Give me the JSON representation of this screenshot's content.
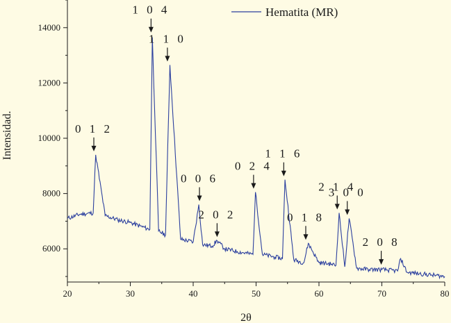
{
  "chart_data": {
    "type": "line",
    "title": "",
    "xlabel": "2θ",
    "ylabel": "Intensidad.",
    "xlim": [
      20,
      80
    ],
    "ylim": [
      4800,
      15000
    ],
    "x_ticks": [
      20,
      30,
      40,
      50,
      60,
      70,
      80
    ],
    "y_ticks": [
      6000,
      8000,
      10000,
      12000,
      14000
    ],
    "grid": false,
    "legend": {
      "position": "top-right",
      "entries": [
        "Hematita (MR)"
      ]
    },
    "colors": {
      "series": "#2b3f9e",
      "axis": "#1a1a1a",
      "background": "#fefbe4"
    },
    "series": [
      {
        "name": "Hematita (MR)",
        "x": [
          20,
          22,
          24.1,
          24.5,
          26,
          28,
          30,
          33.1,
          33.5,
          34.5,
          35.6,
          36.3,
          38,
          40,
          40.9,
          41.5,
          43,
          43.8,
          45,
          47,
          49.5,
          49.9,
          51,
          53,
          54.2,
          54.6,
          56,
          57.6,
          58.3,
          60,
          62,
          62.7,
          63.2,
          64.1,
          64.8,
          66,
          68,
          70,
          72.5,
          73,
          74,
          76,
          78,
          80
        ],
        "y": [
          7100,
          7250,
          7300,
          9400,
          7200,
          7050,
          6950,
          6700,
          13650,
          6650,
          6500,
          12650,
          6350,
          6250,
          7600,
          6150,
          6100,
          6300,
          6000,
          5900,
          5800,
          8050,
          5800,
          5700,
          5650,
          8500,
          5600,
          5500,
          6200,
          5500,
          5450,
          5400,
          7300,
          5350,
          7100,
          5300,
          5250,
          5250,
          5200,
          5650,
          5150,
          5100,
          5050,
          5000
        ]
      }
    ],
    "annotations": [
      {
        "label": "0 1 2",
        "x": 24.2,
        "y": 9400
      },
      {
        "label": "1 0 4",
        "x": 33.3,
        "y": 13700
      },
      {
        "label": "1 1 0",
        "x": 35.9,
        "y": 12650
      },
      {
        "label": "0 0 6",
        "x": 41.0,
        "y": 7600
      },
      {
        "label": "2 0 2",
        "x": 43.8,
        "y": 6300
      },
      {
        "label": "0 2 4",
        "x": 49.6,
        "y": 8050
      },
      {
        "label": "1 1 6",
        "x": 54.4,
        "y": 8500
      },
      {
        "label": "0 1 8",
        "x": 57.9,
        "y": 6200
      },
      {
        "label": "2 1 4",
        "x": 62.9,
        "y": 7300
      },
      {
        "label": "3 0 0",
        "x": 64.5,
        "y": 7100
      },
      {
        "label": "2 0 8",
        "x": 69.9,
        "y": 5300
      }
    ]
  }
}
